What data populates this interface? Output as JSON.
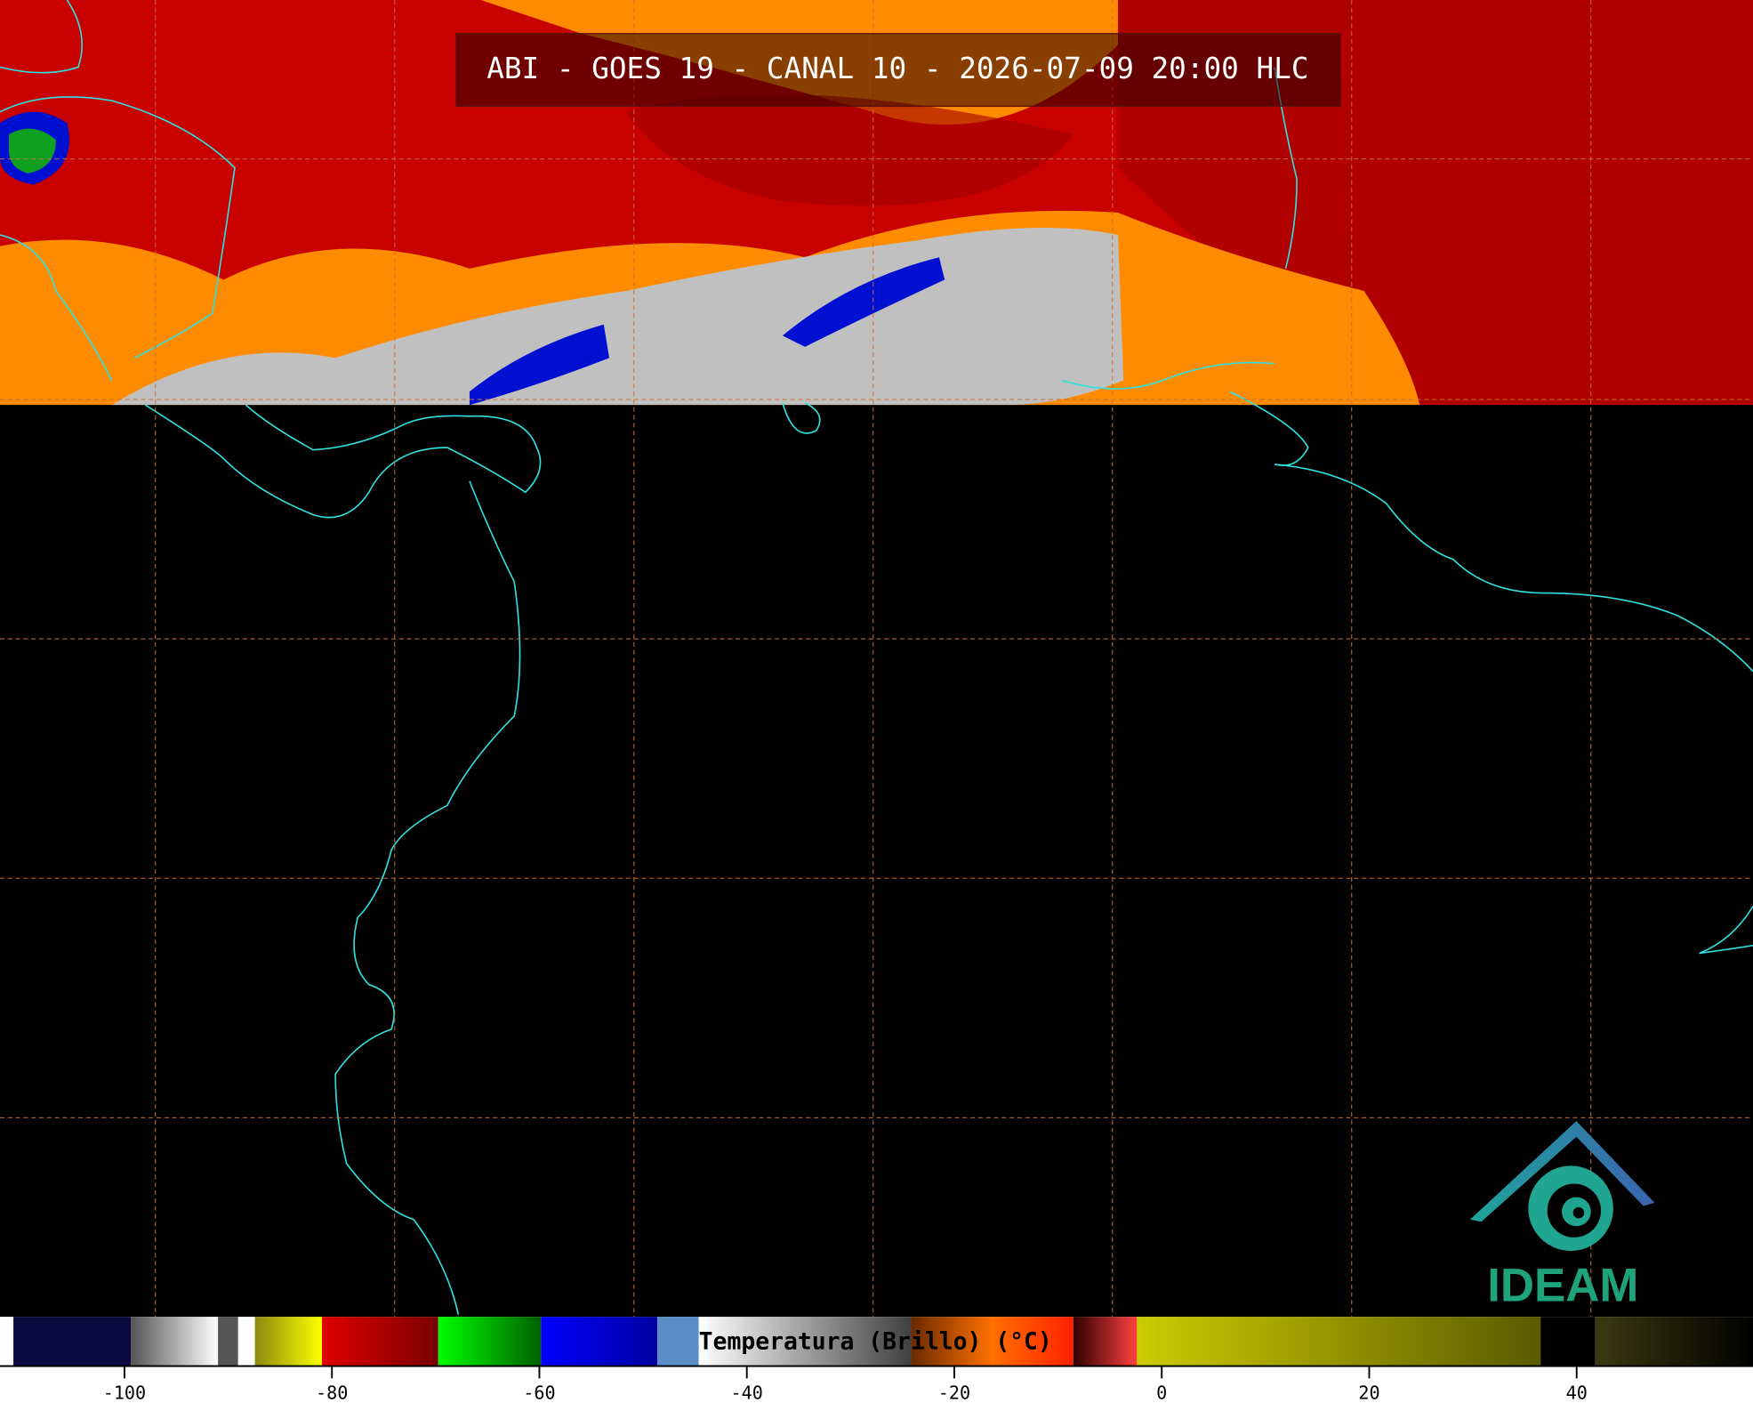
{
  "header": {
    "title": "ABI - GOES 19 - CANAL 10 - 2026-07-09 20:00 HLC"
  },
  "colorbar": {
    "label": "Temperatura (Brillo) (°C)",
    "range": [
      -112,
      57
    ],
    "ticks": [
      -100,
      -80,
      -60,
      -40,
      -20,
      0,
      20,
      40
    ]
  },
  "logo": {
    "text": "IDEAM"
  }
}
